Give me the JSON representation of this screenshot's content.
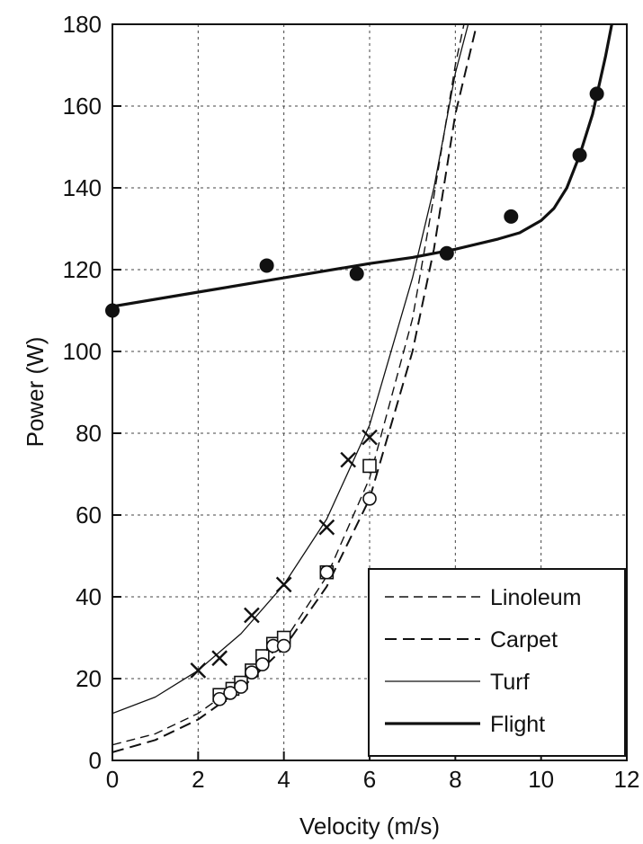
{
  "chart_data": {
    "type": "line",
    "title": "",
    "xlabel": "Velocity (m/s)",
    "ylabel": "Power (W)",
    "xlim": [
      0,
      12
    ],
    "ylim": [
      0,
      180
    ],
    "xticks": [
      "0",
      "2",
      "4",
      "6",
      "8",
      "10",
      "12"
    ],
    "yticks": [
      "0",
      "20",
      "40",
      "60",
      "80",
      "100",
      "120",
      "140",
      "160",
      "180"
    ],
    "grid": true,
    "legend_position": "bottom-right",
    "legend": [
      {
        "label": "Linoleum",
        "style": "dashed-fine"
      },
      {
        "label": "Carpet",
        "style": "dashed"
      },
      {
        "label": "Turf",
        "style": "thin-solid"
      },
      {
        "label": "Flight",
        "style": "thick-solid"
      }
    ],
    "series": [
      {
        "name": "Linoleum",
        "marker": "square",
        "points": [
          [
            2.5,
            16
          ],
          [
            2.8,
            17.5
          ],
          [
            3.0,
            19
          ],
          [
            3.25,
            22
          ],
          [
            3.5,
            25.5
          ],
          [
            3.75,
            28.5
          ],
          [
            4.0,
            30
          ],
          [
            5.0,
            46
          ],
          [
            6.0,
            72
          ]
        ],
        "curve": [
          [
            0,
            3.8
          ],
          [
            1,
            6.5
          ],
          [
            2,
            11.5
          ],
          [
            3,
            19
          ],
          [
            4,
            29
          ],
          [
            5,
            45
          ],
          [
            6,
            69
          ],
          [
            7,
            108
          ],
          [
            7.5,
            138
          ],
          [
            8,
            170
          ],
          [
            8.2,
            180
          ]
        ]
      },
      {
        "name": "Carpet",
        "marker": "circle",
        "points": [
          [
            2.5,
            15
          ],
          [
            2.75,
            16.5
          ],
          [
            3.0,
            18
          ],
          [
            3.25,
            21.5
          ],
          [
            3.5,
            23.5
          ],
          [
            3.75,
            28
          ],
          [
            4.0,
            28
          ],
          [
            5.0,
            46
          ],
          [
            6.0,
            64
          ]
        ],
        "curve": [
          [
            0,
            2
          ],
          [
            1,
            5
          ],
          [
            2,
            10
          ],
          [
            3,
            17.5
          ],
          [
            4,
            27.5
          ],
          [
            5,
            42.5
          ],
          [
            6,
            64
          ],
          [
            7,
            100
          ],
          [
            7.5,
            125
          ],
          [
            8,
            158
          ],
          [
            8.5,
            180
          ]
        ]
      },
      {
        "name": "Turf",
        "marker": "x",
        "points": [
          [
            2.0,
            22
          ],
          [
            2.5,
            25
          ],
          [
            3.25,
            35.5
          ],
          [
            4.0,
            43
          ],
          [
            5.0,
            57
          ],
          [
            5.5,
            73.5
          ],
          [
            6.0,
            79
          ]
        ],
        "curve": [
          [
            0,
            11.5
          ],
          [
            1,
            15.5
          ],
          [
            2,
            22
          ],
          [
            3,
            31
          ],
          [
            4,
            43
          ],
          [
            5,
            59
          ],
          [
            6,
            82
          ],
          [
            7,
            118
          ],
          [
            7.5,
            140
          ],
          [
            8,
            168
          ],
          [
            8.3,
            180
          ]
        ]
      },
      {
        "name": "Flight",
        "marker": "filled-circle",
        "points": [
          [
            0,
            110
          ],
          [
            3.6,
            121
          ],
          [
            5.7,
            119
          ],
          [
            7.8,
            124
          ],
          [
            9.3,
            133
          ],
          [
            10.9,
            148
          ],
          [
            11.3,
            163
          ]
        ],
        "curve": [
          [
            0,
            111
          ],
          [
            2,
            114.5
          ],
          [
            4,
            118
          ],
          [
            6,
            121.5
          ],
          [
            7,
            123
          ],
          [
            8,
            125
          ],
          [
            9,
            127.5
          ],
          [
            9.5,
            129
          ],
          [
            10,
            132
          ],
          [
            10.3,
            135
          ],
          [
            10.6,
            140
          ],
          [
            10.9,
            148
          ],
          [
            11.2,
            158
          ],
          [
            11.5,
            172
          ],
          [
            11.65,
            180
          ]
        ]
      }
    ]
  }
}
